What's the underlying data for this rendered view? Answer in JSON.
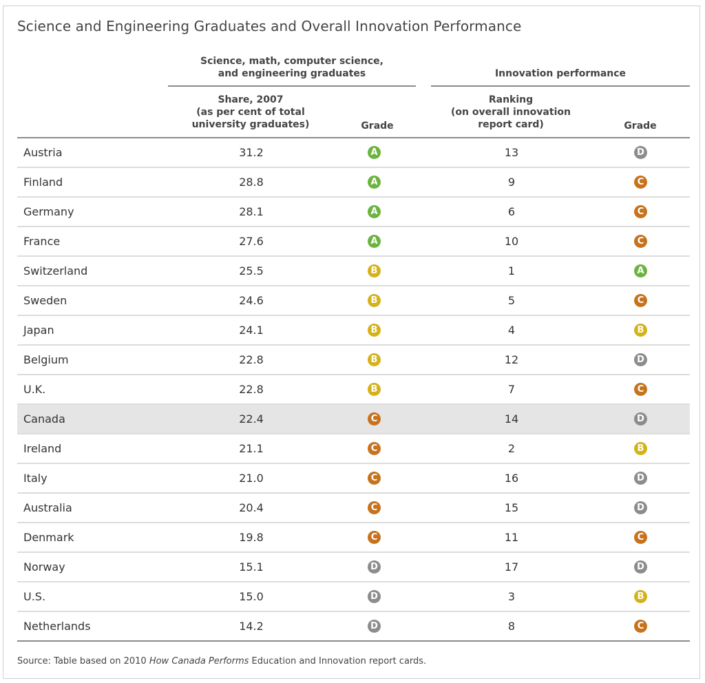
{
  "title": "Science and Engineering Graduates and Overall Innovation Performance",
  "group_headers": {
    "graduates": "Science, math, computer science,\nand engineering graduates",
    "graduates_line1": "Science, math, computer science,",
    "graduates_line2": "and engineering graduates",
    "innovation": "Innovation performance"
  },
  "column_headers": {
    "share_line1": "Share, 2007",
    "share_line2": "(as per cent of total",
    "share_line3": "university graduates)",
    "grade1": "Grade",
    "rank_line1": "Ranking",
    "rank_line2": "(on overall innovation",
    "rank_line3": "report card)",
    "grade2": "Grade"
  },
  "grade_colors": {
    "A": "#6cb33f",
    "B": "#d4b21a",
    "C": "#c7731d",
    "D": "#8c8c8c"
  },
  "rows": [
    {
      "country": "Austria",
      "share": "31.2",
      "grad_grade": "A",
      "ranking": "13",
      "innov_grade": "D",
      "highlight": false
    },
    {
      "country": "Finland",
      "share": "28.8",
      "grad_grade": "A",
      "ranking": "9",
      "innov_grade": "C",
      "highlight": false
    },
    {
      "country": "Germany",
      "share": "28.1",
      "grad_grade": "A",
      "ranking": "6",
      "innov_grade": "C",
      "highlight": false
    },
    {
      "country": "France",
      "share": "27.6",
      "grad_grade": "A",
      "ranking": "10",
      "innov_grade": "C",
      "highlight": false
    },
    {
      "country": "Switzerland",
      "share": "25.5",
      "grad_grade": "B",
      "ranking": "1",
      "innov_grade": "A",
      "highlight": false
    },
    {
      "country": "Sweden",
      "share": "24.6",
      "grad_grade": "B",
      "ranking": "5",
      "innov_grade": "C",
      "highlight": false
    },
    {
      "country": "Japan",
      "share": "24.1",
      "grad_grade": "B",
      "ranking": "4",
      "innov_grade": "B",
      "highlight": false
    },
    {
      "country": "Belgium",
      "share": "22.8",
      "grad_grade": "B",
      "ranking": "12",
      "innov_grade": "D",
      "highlight": false
    },
    {
      "country": "U.K.",
      "share": "22.8",
      "grad_grade": "B",
      "ranking": "7",
      "innov_grade": "C",
      "highlight": false
    },
    {
      "country": "Canada",
      "share": "22.4",
      "grad_grade": "C",
      "ranking": "14",
      "innov_grade": "D",
      "highlight": true
    },
    {
      "country": "Ireland",
      "share": "21.1",
      "grad_grade": "C",
      "ranking": "2",
      "innov_grade": "B",
      "highlight": false
    },
    {
      "country": "Italy",
      "share": "21.0",
      "grad_grade": "C",
      "ranking": "16",
      "innov_grade": "D",
      "highlight": false
    },
    {
      "country": "Australia",
      "share": "20.4",
      "grad_grade": "C",
      "ranking": "15",
      "innov_grade": "D",
      "highlight": false
    },
    {
      "country": "Denmark",
      "share": "19.8",
      "grad_grade": "C",
      "ranking": "11",
      "innov_grade": "C",
      "highlight": false
    },
    {
      "country": "Norway",
      "share": "15.1",
      "grad_grade": "D",
      "ranking": "17",
      "innov_grade": "D",
      "highlight": false
    },
    {
      "country": "U.S.",
      "share": "15.0",
      "grad_grade": "D",
      "ranking": "3",
      "innov_grade": "B",
      "highlight": false
    },
    {
      "country": "Netherlands",
      "share": "14.2",
      "grad_grade": "D",
      "ranking": "8",
      "innov_grade": "C",
      "highlight": false
    }
  ],
  "source": {
    "prefix": "Source: Table based on 2010 ",
    "italic": "How Canada Performs",
    "suffix": " Education and Innovation report cards."
  }
}
